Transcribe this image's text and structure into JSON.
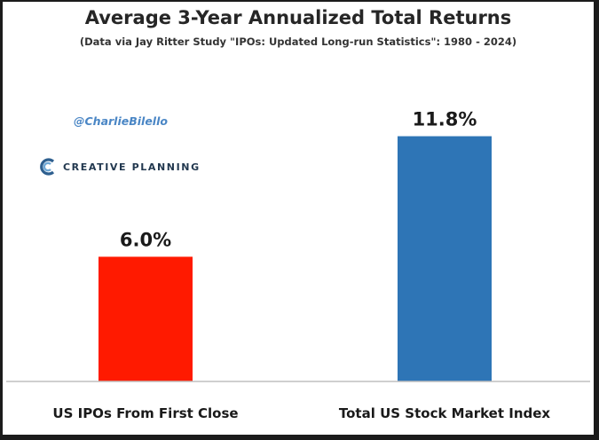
{
  "watermark": {
    "handle": "@CharlieBilello",
    "brand": "CREATIVE PLANNING",
    "brand_icon": "creative-planning-logo-icon"
  },
  "chart_data": {
    "type": "bar",
    "title": "Average 3-Year Annualized Total Returns",
    "subtitle": "(Data via Jay Ritter Study \"IPOs: Updated Long-run Statistics\": 1980 - 2024)",
    "categories": [
      "US IPOs From First Close",
      "Total US Stock Market Index"
    ],
    "values": [
      6.0,
      11.8
    ],
    "data_labels": [
      "6.0%",
      "11.8%"
    ],
    "colors": [
      "#ff1a00",
      "#2e75b6"
    ],
    "ylim": [
      0,
      14
    ],
    "grid": false,
    "legend": "none",
    "xlabel": "",
    "ylabel": ""
  },
  "colors": {
    "axis": "#bfbfbf",
    "label_text": "#1a1a1a"
  }
}
